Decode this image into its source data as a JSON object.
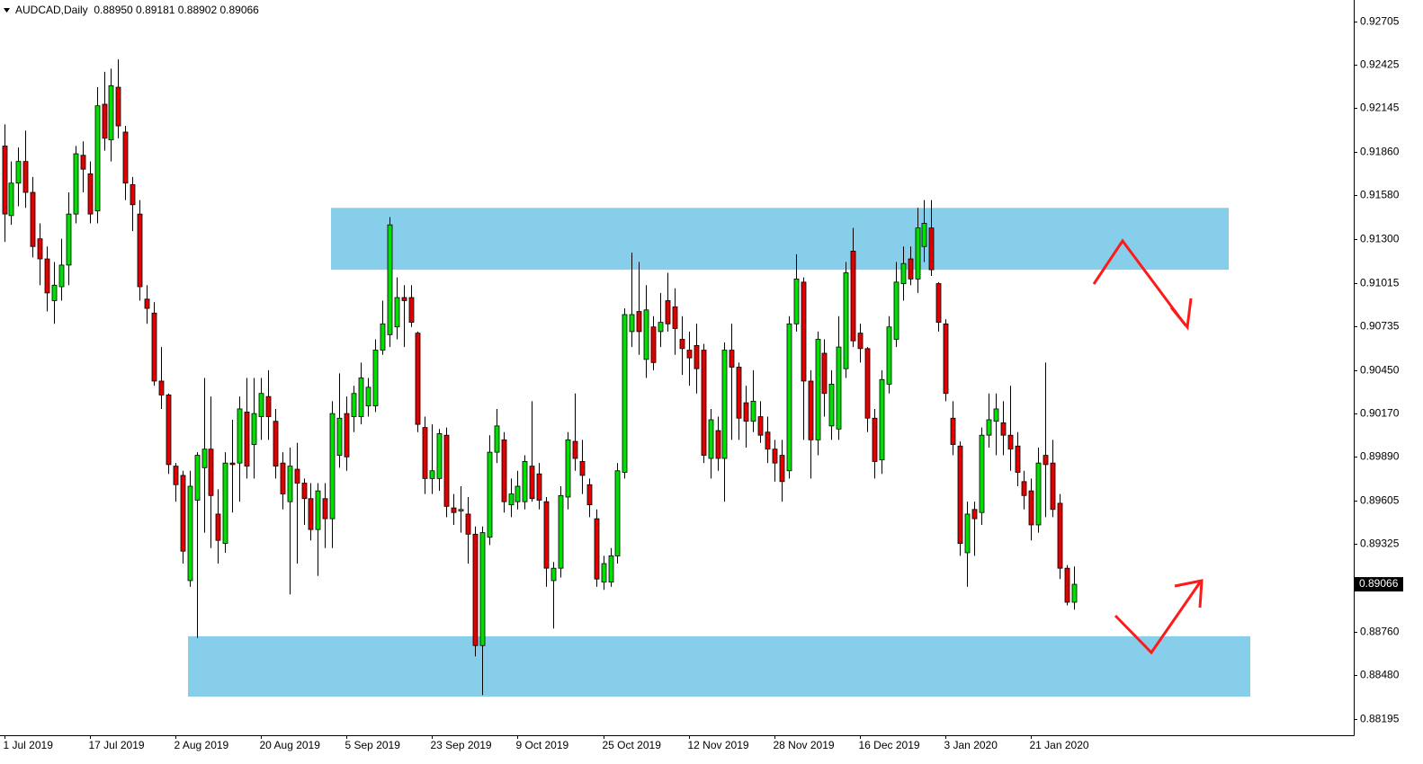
{
  "chart_data": {
    "type": "candlestick",
    "title": "AUDCAD,Daily  0.88950 0.89181 0.88902 0.89066",
    "categories": [
      "1 Jul 2019",
      null,
      null,
      null,
      null,
      null,
      null,
      null,
      null,
      null,
      null,
      null,
      "17 Jul 2019",
      null,
      null,
      null,
      null,
      null,
      null,
      null,
      null,
      null,
      null,
      null,
      "2 Aug 2019",
      null,
      null,
      null,
      null,
      null,
      null,
      null,
      null,
      null,
      null,
      null,
      "20 Aug 2019",
      null,
      null,
      null,
      null,
      null,
      null,
      null,
      null,
      null,
      null,
      null,
      "5 Sep 2019",
      null,
      null,
      null,
      null,
      null,
      null,
      null,
      null,
      null,
      null,
      null,
      "23 Sep 2019",
      null,
      null,
      null,
      null,
      null,
      null,
      null,
      null,
      null,
      null,
      null,
      "9 Oct 2019",
      null,
      null,
      null,
      null,
      null,
      null,
      null,
      null,
      null,
      null,
      null,
      "25 Oct 2019",
      null,
      null,
      null,
      null,
      null,
      null,
      null,
      null,
      null,
      null,
      null,
      "12 Nov 2019",
      null,
      null,
      null,
      null,
      null,
      null,
      null,
      null,
      null,
      null,
      null,
      "28 Nov 2019",
      null,
      null,
      null,
      null,
      null,
      null,
      null,
      null,
      null,
      null,
      null,
      "16 Dec 2019",
      null,
      null,
      null,
      null,
      null,
      null,
      null,
      null,
      null,
      null,
      null,
      "3 Jan 2020",
      null,
      null,
      null,
      null,
      null,
      null,
      null,
      null,
      null,
      null,
      null,
      "21 Jan 2020",
      null,
      null,
      null,
      null,
      null,
      null
    ],
    "open": [
      0.919,
      0.9145,
      0.9166,
      0.918,
      0.916,
      0.913,
      0.9117,
      0.909,
      0.9099,
      0.9113,
      0.9146,
      0.9184,
      0.9172,
      0.9148,
      0.9217,
      0.9194,
      0.9228,
      0.9199,
      0.9165,
      0.9146,
      0.9091,
      0.9082,
      0.9038,
      0.9029,
      0.8983,
      0.8977,
      0.8909,
      0.8961,
      0.8982,
      0.8994,
      0.8952,
      0.8933,
      0.8985,
      0.8985,
      0.9018,
      0.8997,
      0.9015,
      0.9028,
      0.9012,
      0.8985,
      0.896,
      0.8981,
      0.8972,
      0.8962,
      0.8942,
      0.8962,
      0.8949,
      0.899,
      0.9017,
      0.9015,
      0.9015,
      0.9022,
      0.9022,
      0.9058,
      0.9068,
      0.9073,
      0.9092,
      0.9092,
      0.9069,
      0.9008,
      0.8975,
      0.8975,
      0.9003,
      0.8956,
      0.8954,
      0.8952,
      0.8939,
      0.8867,
      0.8937,
      0.8992,
      0.9,
      0.8958,
      0.896,
      0.896,
      0.8983,
      0.8978,
      0.896,
      0.8909,
      0.8917,
      0.8963,
      0.8999,
      0.8986,
      0.8971,
      0.8949,
      0.8908,
      0.8908,
      0.8925,
      0.8979,
      0.907,
      0.9083,
      0.9052,
      0.9073,
      0.907,
      0.909,
      0.9086,
      0.9065,
      0.9058,
      0.9061,
      0.9058,
      0.8988,
      0.9006,
      0.8988,
      0.9058,
      0.9047,
      0.9024,
      0.9012,
      0.9015,
      0.9005,
      0.8994,
      0.899,
      0.898,
      0.9075,
      0.9102,
      0.9038,
      0.9,
      0.9056,
      0.9009,
      0.9007,
      0.9046,
      0.9122,
      0.9069,
      0.9059,
      0.9014,
      0.8987,
      0.9036,
      0.9065,
      0.9101,
      0.9117,
      0.9104,
      0.9125,
      0.9137,
      0.9101,
      0.9075,
      0.9014,
      0.8996,
      0.8927,
      0.8955,
      0.8953,
      0.9003,
      0.9012,
      0.9011,
      0.9003,
      0.8996,
      0.8973,
      0.8967,
      0.8945,
      0.899,
      0.8985,
      0.8959,
      0.8917,
      0.8895
    ],
    "high": [
      0.9204,
      0.918,
      0.9189,
      0.92,
      0.917,
      0.914,
      0.9125,
      0.9115,
      0.913,
      0.916,
      0.919,
      0.9193,
      0.918,
      0.9228,
      0.9238,
      0.924,
      0.9246,
      0.9203,
      0.917,
      0.9155,
      0.91,
      0.9089,
      0.906,
      0.903,
      0.8985,
      0.898,
      0.898,
      0.8992,
      0.904,
      0.9028,
      0.8968,
      0.8992,
      0.9013,
      0.9028,
      0.904,
      0.904,
      0.904,
      0.9045,
      0.902,
      0.8992,
      0.8995,
      0.8998,
      0.8975,
      0.8972,
      0.8972,
      0.8972,
      0.9025,
      0.9043,
      0.9028,
      0.9035,
      0.905,
      0.904,
      0.9065,
      0.909,
      0.9144,
      0.9105,
      0.91,
      0.91,
      0.907,
      0.9015,
      0.901,
      0.9007,
      0.9008,
      0.8965,
      0.897,
      0.8963,
      0.8944,
      0.8944,
      0.9003,
      0.902,
      0.9005,
      0.8975,
      0.898,
      0.899,
      0.9025,
      0.8985,
      0.8963,
      0.8921,
      0.897,
      0.9005,
      0.903,
      0.9,
      0.8975,
      0.8955,
      0.8925,
      0.893,
      0.8985,
      0.9085,
      0.9121,
      0.9115,
      0.91,
      0.908,
      0.9095,
      0.9108,
      0.9098,
      0.908,
      0.907,
      0.9075,
      0.9062,
      0.902,
      0.9015,
      0.9063,
      0.9075,
      0.905,
      0.9035,
      0.9045,
      0.9025,
      0.9015,
      0.9,
      0.9,
      0.908,
      0.912,
      0.9105,
      0.9045,
      0.907,
      0.9065,
      0.9045,
      0.908,
      0.9115,
      0.9137,
      0.9075,
      0.906,
      0.902,
      0.9045,
      0.908,
      0.9115,
      0.9125,
      0.9125,
      0.915,
      0.9155,
      0.9155,
      0.9102,
      0.9078,
      0.9025,
      0.8999,
      0.896,
      0.896,
      0.9008,
      0.903,
      0.903,
      0.9025,
      0.9035,
      0.9005,
      0.898,
      0.8975,
      0.8995,
      0.905,
      0.9,
      0.8965,
      0.8919,
      0.89181
    ],
    "low": [
      0.9128,
      0.9139,
      0.9151,
      0.915,
      0.9118,
      0.91,
      0.9083,
      0.9075,
      0.909,
      0.91,
      0.914,
      0.916,
      0.914,
      0.914,
      0.9187,
      0.918,
      0.9195,
      0.9155,
      0.9135,
      0.909,
      0.9075,
      0.9035,
      0.902,
      0.8978,
      0.896,
      0.892,
      0.8905,
      0.8872,
      0.894,
      0.893,
      0.892,
      0.8927,
      0.8953,
      0.896,
      0.8975,
      0.8975,
      0.9,
      0.9,
      0.8975,
      0.8955,
      0.89,
      0.892,
      0.8945,
      0.8935,
      0.8912,
      0.893,
      0.893,
      0.8982,
      0.898,
      0.9005,
      0.901,
      0.9015,
      0.9018,
      0.9055,
      0.906,
      0.9065,
      0.906,
      0.9073,
      0.9005,
      0.8965,
      0.8965,
      0.8967,
      0.895,
      0.8945,
      0.894,
      0.892,
      0.886,
      0.8835,
      0.8932,
      0.8985,
      0.8953,
      0.895,
      0.8955,
      0.8955,
      0.896,
      0.8955,
      0.8905,
      0.8878,
      0.8911,
      0.8955,
      0.898,
      0.8965,
      0.895,
      0.8905,
      0.8903,
      0.8905,
      0.892,
      0.8975,
      0.906,
      0.9055,
      0.904,
      0.9045,
      0.906,
      0.907,
      0.9055,
      0.9042,
      0.9035,
      0.903,
      0.8985,
      0.8975,
      0.898,
      0.896,
      0.9,
      0.9,
      0.8995,
      0.9005,
      0.8998,
      0.8985,
      0.8973,
      0.896,
      0.8975,
      0.907,
      0.9,
      0.8975,
      0.899,
      0.9015,
      0.9,
      0.9,
      0.904,
      0.906,
      0.905,
      0.9005,
      0.8975,
      0.8978,
      0.903,
      0.906,
      0.909,
      0.91,
      0.9095,
      0.9115,
      0.9106,
      0.907,
      0.9025,
      0.899,
      0.8925,
      0.8905,
      0.8925,
      0.8945,
      0.8995,
      0.899,
      0.899,
      0.898,
      0.897,
      0.8955,
      0.8935,
      0.894,
      0.895,
      0.895,
      0.891,
      0.8893,
      0.88902
    ],
    "close": [
      0.9146,
      0.9166,
      0.918,
      0.916,
      0.9125,
      0.9117,
      0.9095,
      0.91,
      0.9113,
      0.9146,
      0.9185,
      0.9175,
      0.9146,
      0.9216,
      0.9195,
      0.9229,
      0.9203,
      0.9166,
      0.9152,
      0.9099,
      0.9085,
      0.9038,
      0.9029,
      0.8984,
      0.8971,
      0.8928,
      0.897,
      0.899,
      0.8994,
      0.8964,
      0.8935,
      0.8985,
      0.8984,
      0.902,
      0.8983,
      0.9017,
      0.903,
      0.9015,
      0.8983,
      0.8965,
      0.8983,
      0.8972,
      0.8962,
      0.8942,
      0.8967,
      0.8949,
      0.9017,
      0.9014,
      0.8989,
      0.903,
      0.904,
      0.9034,
      0.9058,
      0.9075,
      0.9139,
      0.9092,
      0.909,
      0.9076,
      0.901,
      0.8975,
      0.898,
      0.9004,
      0.8957,
      0.8953,
      0.8955,
      0.8939,
      0.8867,
      0.894,
      0.8992,
      0.9009,
      0.896,
      0.8965,
      0.897,
      0.8986,
      0.8962,
      0.8961,
      0.8917,
      0.8917,
      0.8964,
      0.9,
      0.8988,
      0.8977,
      0.8958,
      0.891,
      0.892,
      0.8925,
      0.898,
      0.9081,
      0.9081,
      0.907,
      0.9084,
      0.905,
      0.9076,
      0.9075,
      0.9072,
      0.9059,
      0.9053,
      0.9046,
      0.899,
      0.9013,
      0.8988,
      0.9058,
      0.9047,
      0.9014,
      0.9012,
      0.9025,
      0.9003,
      0.8994,
      0.8985,
      0.8973,
      0.9075,
      0.9104,
      0.9038,
      0.9,
      0.9065,
      0.903,
      0.9036,
      0.906,
      0.9108,
      0.9064,
      0.9059,
      0.9014,
      0.8986,
      0.9039,
      0.9073,
      0.9102,
      0.9114,
      0.9104,
      0.9137,
      0.914,
      0.911,
      0.9076,
      0.903,
      0.8997,
      0.8933,
      0.8952,
      0.8949,
      0.9003,
      0.9013,
      0.902,
      0.9003,
      0.8994,
      0.8979,
      0.8964,
      0.8945,
      0.8985,
      0.8984,
      0.8955,
      0.8917,
      0.8895,
      0.89066
    ],
    "up_color": "#00e000",
    "down_color": "#e00000",
    "ylim": [
      0.8809,
      0.92844
    ],
    "yticks": [
      0.92705,
      0.92425,
      0.92145,
      {
        "value": 0.9186,
        "label": "0.91860"
      },
      {
        "value": 0.9158,
        "label": "0.91580"
      },
      {
        "value": 0.913,
        "label": "0.91300"
      },
      0.91015,
      0.90735,
      {
        "value": 0.9045,
        "label": "0.90450"
      },
      {
        "value": 0.9017,
        "label": "0.90170"
      },
      {
        "value": 0.8989,
        "label": "0.89890"
      },
      0.89605,
      0.89325,
      {
        "value": 0.8876,
        "label": "0.88760"
      },
      {
        "value": 0.8848,
        "label": "0.88480"
      },
      0.88195
    ],
    "last_price": 0.89066,
    "zones": [
      {
        "low": 0.911,
        "high": 0.915
      },
      {
        "low": 0.8834,
        "high": 0.8873
      }
    ],
    "zone_color": "#87ceeb",
    "grid": false
  }
}
